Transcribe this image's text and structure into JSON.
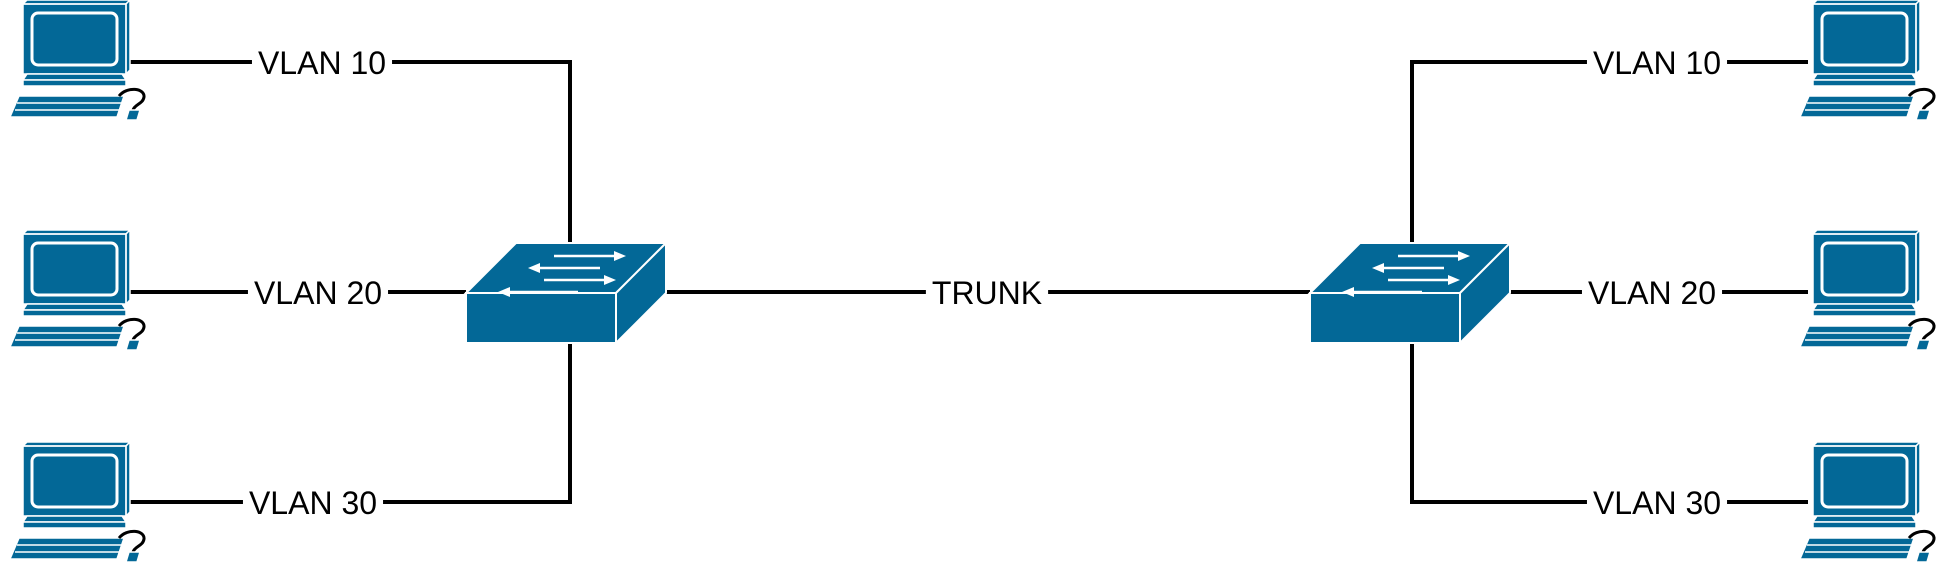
{
  "colors": {
    "device": "#036897",
    "line": "#000000",
    "background": "#ffffff"
  },
  "trunk": {
    "label": "TRUNK"
  },
  "switches": [
    {
      "id": "left-switch",
      "icon": "network-switch-icon"
    },
    {
      "id": "right-switch",
      "icon": "network-switch-icon"
    }
  ],
  "left": {
    "hosts": [
      {
        "vlan": "VLAN 10",
        "icon": "workstation-icon"
      },
      {
        "vlan": "VLAN 20",
        "icon": "workstation-icon"
      },
      {
        "vlan": "VLAN 30",
        "icon": "workstation-icon"
      }
    ]
  },
  "right": {
    "hosts": [
      {
        "vlan": "VLAN 10",
        "icon": "workstation-icon"
      },
      {
        "vlan": "VLAN 20",
        "icon": "workstation-icon"
      },
      {
        "vlan": "VLAN 30",
        "icon": "workstation-icon"
      }
    ]
  }
}
